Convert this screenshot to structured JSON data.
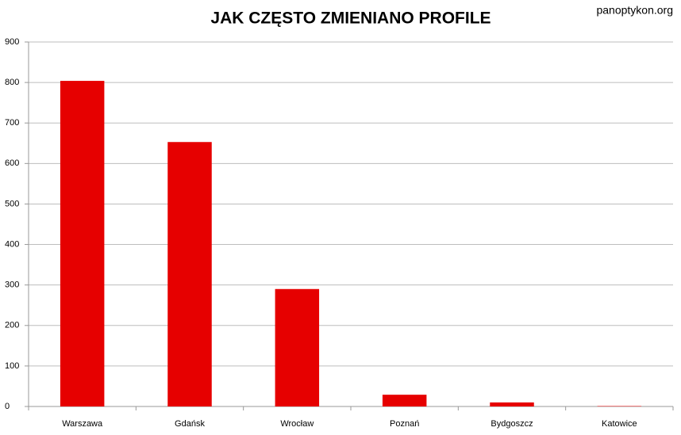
{
  "chart_data": {
    "type": "bar",
    "title": "JAK CZĘSTO ZMIENIANO PROFILE",
    "watermark": "panoptykon.org",
    "categories": [
      "Warszawa",
      "Gdańsk",
      "Wrocław",
      "Poznań",
      "Bydgoszcz",
      "Katowice"
    ],
    "values": [
      804,
      653,
      290,
      29,
      10,
      1
    ],
    "color": "#e60000",
    "ylim": [
      0,
      900
    ],
    "yticks": [
      0,
      100,
      200,
      300,
      400,
      500,
      600,
      700,
      800,
      900
    ],
    "grid": true
  }
}
